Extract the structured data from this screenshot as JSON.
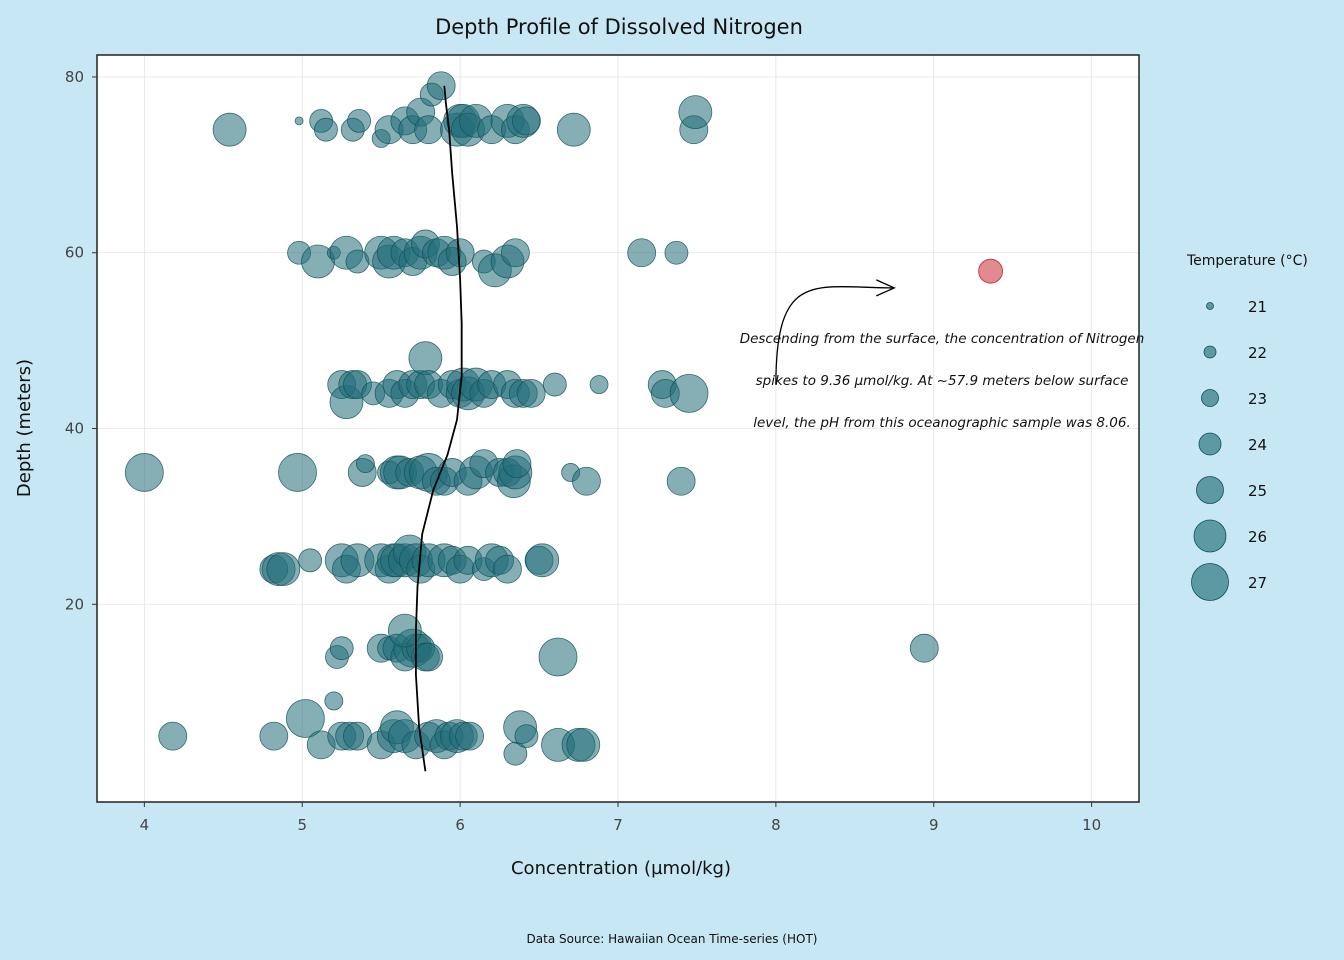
{
  "chart_data": {
    "type": "scatter",
    "title": "Depth Profile of Dissolved Nitrogen",
    "xlabel": "Concentration (µmol/kg)",
    "ylabel": "Depth (meters)",
    "caption": "Data Source: Hawaiian Ocean Time-series (HOT)",
    "xlim": [
      3.7,
      10.3
    ],
    "ylim": [
      82.5,
      -2.5
    ],
    "y_reversed": true,
    "x_ticks": [
      4,
      5,
      6,
      7,
      8,
      9,
      10
    ],
    "y_ticks": [
      20,
      40,
      60,
      80
    ],
    "grid": true,
    "legend": {
      "title": "Temperature (°C)",
      "placement": "right",
      "items": [
        "21",
        "22",
        "23",
        "24",
        "25",
        "26",
        "27"
      ],
      "temps": [
        21,
        22,
        23,
        24,
        25,
        26,
        27
      ]
    },
    "point_color": "#236e78",
    "highlight_color": "#d9636b",
    "trend_line": [
      [
        5.78,
        1
      ],
      [
        5.74,
        6
      ],
      [
        5.72,
        12
      ],
      [
        5.72,
        17
      ],
      [
        5.73,
        22
      ],
      [
        5.76,
        28
      ],
      [
        5.83,
        33
      ],
      [
        5.92,
        37
      ],
      [
        5.98,
        41
      ],
      [
        6.01,
        46
      ],
      [
        6.01,
        52
      ],
      [
        6.0,
        57
      ],
      [
        5.98,
        63
      ],
      [
        5.95,
        69
      ],
      [
        5.93,
        74
      ],
      [
        5.91,
        77
      ],
      [
        5.9,
        79
      ]
    ],
    "annotation": {
      "lines": [
        "Descending from the surface, the concentration of Nitrogen",
        "spikes to 9.36 µmol/kg. At ~57.9 meters below surface",
        "level, the pH from this oceanographic sample was 8.06."
      ],
      "box": {
        "x": [
          8.75,
          10.0
        ],
        "y": [
          50,
          70
        ]
      },
      "arrow_from": [
        8.0,
        45
      ],
      "arrow_to": [
        8.75,
        56
      ]
    },
    "highlight": {
      "x": 9.36,
      "y": 57.9,
      "temp": 24
    },
    "points": [
      [
        4.18,
        5,
        24
      ],
      [
        4.82,
        5,
        24
      ],
      [
        5.02,
        7,
        26
      ],
      [
        5.12,
        4,
        24
      ],
      [
        5.2,
        9,
        22
      ],
      [
        5.25,
        5,
        24
      ],
      [
        5.3,
        5,
        24
      ],
      [
        5.35,
        5,
        24
      ],
      [
        5.5,
        4,
        24
      ],
      [
        5.58,
        5,
        25
      ],
      [
        5.6,
        6,
        25
      ],
      [
        5.65,
        5,
        25
      ],
      [
        5.72,
        4,
        24
      ],
      [
        5.8,
        5,
        24
      ],
      [
        5.85,
        5,
        25
      ],
      [
        5.9,
        4,
        24
      ],
      [
        5.93,
        5,
        24
      ],
      [
        5.98,
        5,
        25
      ],
      [
        6.02,
        5,
        24
      ],
      [
        6.06,
        5,
        24
      ],
      [
        6.35,
        3,
        23
      ],
      [
        6.38,
        6,
        25
      ],
      [
        6.42,
        5,
        23
      ],
      [
        6.62,
        4,
        25
      ],
      [
        6.75,
        4,
        25
      ],
      [
        6.78,
        4,
        25
      ],
      [
        5.22,
        14,
        23
      ],
      [
        5.25,
        15,
        23
      ],
      [
        5.5,
        15,
        24
      ],
      [
        5.55,
        15,
        23
      ],
      [
        5.6,
        15,
        24
      ],
      [
        5.65,
        14,
        24
      ],
      [
        5.7,
        15,
        26
      ],
      [
        5.72,
        15,
        24
      ],
      [
        5.75,
        15,
        24
      ],
      [
        5.78,
        14,
        24
      ],
      [
        5.8,
        14,
        24
      ],
      [
        5.65,
        17,
        25
      ],
      [
        6.62,
        14,
        26
      ],
      [
        8.94,
        15,
        24
      ],
      [
        4.82,
        24,
        24
      ],
      [
        4.85,
        24,
        25
      ],
      [
        4.88,
        24,
        25
      ],
      [
        5.05,
        25,
        23
      ],
      [
        5.25,
        25,
        25
      ],
      [
        5.28,
        24,
        24
      ],
      [
        5.35,
        25,
        25
      ],
      [
        5.5,
        25,
        25
      ],
      [
        5.55,
        24,
        24
      ],
      [
        5.58,
        25,
        25
      ],
      [
        5.6,
        25,
        25
      ],
      [
        5.65,
        25,
        25
      ],
      [
        5.68,
        26,
        25
      ],
      [
        5.72,
        25,
        25
      ],
      [
        5.75,
        24,
        24
      ],
      [
        5.8,
        25,
        25
      ],
      [
        5.9,
        25,
        25
      ],
      [
        5.95,
        25,
        24
      ],
      [
        6.0,
        24,
        24
      ],
      [
        6.05,
        25,
        24
      ],
      [
        6.15,
        24,
        23
      ],
      [
        6.2,
        25,
        25
      ],
      [
        6.25,
        25,
        24
      ],
      [
        6.3,
        24,
        24
      ],
      [
        6.5,
        25,
        24
      ],
      [
        6.52,
        25,
        25
      ],
      [
        4.0,
        35,
        26
      ],
      [
        4.97,
        35,
        26
      ],
      [
        5.38,
        35,
        24
      ],
      [
        5.4,
        36,
        22
      ],
      [
        5.55,
        35,
        23
      ],
      [
        5.6,
        35,
        25
      ],
      [
        5.62,
        35,
        25
      ],
      [
        5.68,
        35,
        24
      ],
      [
        5.75,
        35,
        25
      ],
      [
        5.8,
        35,
        26
      ],
      [
        5.85,
        34,
        24
      ],
      [
        5.9,
        34,
        24
      ],
      [
        5.95,
        35,
        24
      ],
      [
        6.05,
        34,
        24
      ],
      [
        6.1,
        35,
        25
      ],
      [
        6.15,
        36,
        24
      ],
      [
        6.25,
        35,
        24
      ],
      [
        6.3,
        35,
        24
      ],
      [
        6.34,
        34,
        25
      ],
      [
        6.35,
        35,
        25
      ],
      [
        6.36,
        36,
        24
      ],
      [
        6.7,
        35,
        22
      ],
      [
        6.8,
        34,
        24
      ],
      [
        7.4,
        34,
        24
      ],
      [
        5.25,
        45,
        24
      ],
      [
        5.28,
        43,
        25
      ],
      [
        5.32,
        45,
        24
      ],
      [
        5.35,
        45,
        24
      ],
      [
        5.45,
        44,
        23
      ],
      [
        5.55,
        44,
        24
      ],
      [
        5.6,
        45,
        24
      ],
      [
        5.65,
        44,
        24
      ],
      [
        5.7,
        45,
        24
      ],
      [
        5.75,
        45,
        24
      ],
      [
        5.78,
        48,
        25
      ],
      [
        5.8,
        45,
        24
      ],
      [
        5.88,
        44,
        24
      ],
      [
        5.95,
        45,
        24
      ],
      [
        6.0,
        44,
        24
      ],
      [
        6.02,
        45,
        25
      ],
      [
        6.05,
        44,
        25
      ],
      [
        6.1,
        45,
        25
      ],
      [
        6.15,
        44,
        24
      ],
      [
        6.2,
        45,
        24
      ],
      [
        6.3,
        45,
        24
      ],
      [
        6.35,
        44,
        24
      ],
      [
        6.4,
        44,
        24
      ],
      [
        6.45,
        44,
        24
      ],
      [
        6.6,
        45,
        23
      ],
      [
        6.88,
        45,
        22
      ],
      [
        7.28,
        45,
        24
      ],
      [
        7.3,
        44,
        24
      ],
      [
        7.45,
        44,
        26
      ],
      [
        4.98,
        60,
        23
      ],
      [
        5.1,
        59,
        25
      ],
      [
        5.2,
        60,
        21
      ],
      [
        5.28,
        60,
        25
      ],
      [
        5.35,
        59,
        23
      ],
      [
        5.5,
        60,
        25
      ],
      [
        5.55,
        59,
        25
      ],
      [
        5.58,
        60,
        25
      ],
      [
        5.65,
        60,
        24
      ],
      [
        5.7,
        59,
        24
      ],
      [
        5.75,
        60,
        25
      ],
      [
        5.78,
        61,
        24
      ],
      [
        5.85,
        60,
        24
      ],
      [
        5.9,
        60,
        25
      ],
      [
        5.95,
        59,
        24
      ],
      [
        6.0,
        60,
        24
      ],
      [
        6.15,
        59,
        23
      ],
      [
        6.22,
        58,
        25
      ],
      [
        6.3,
        59,
        25
      ],
      [
        6.35,
        60,
        24
      ],
      [
        7.15,
        60,
        24
      ],
      [
        7.37,
        60,
        23
      ],
      [
        4.54,
        74,
        25
      ],
      [
        4.98,
        75,
        20
      ],
      [
        5.12,
        75,
        23
      ],
      [
        5.15,
        74,
        23
      ],
      [
        5.32,
        74,
        23
      ],
      [
        5.36,
        75,
        23
      ],
      [
        5.5,
        73,
        22
      ],
      [
        5.55,
        74,
        24
      ],
      [
        5.65,
        75,
        24
      ],
      [
        5.7,
        74,
        24
      ],
      [
        5.75,
        76,
        24
      ],
      [
        5.8,
        74,
        24
      ],
      [
        5.82,
        78,
        23
      ],
      [
        5.88,
        79,
        24
      ],
      [
        5.98,
        74,
        25
      ],
      [
        6.0,
        75,
        25
      ],
      [
        6.02,
        75,
        25
      ],
      [
        6.05,
        74,
        25
      ],
      [
        6.1,
        75,
        25
      ],
      [
        6.2,
        74,
        24
      ],
      [
        6.3,
        75,
        25
      ],
      [
        6.35,
        74,
        24
      ],
      [
        6.4,
        75,
        25
      ],
      [
        6.42,
        75,
        24
      ],
      [
        6.72,
        74,
        25
      ],
      [
        7.48,
        74,
        24
      ],
      [
        7.49,
        76,
        25
      ]
    ]
  }
}
